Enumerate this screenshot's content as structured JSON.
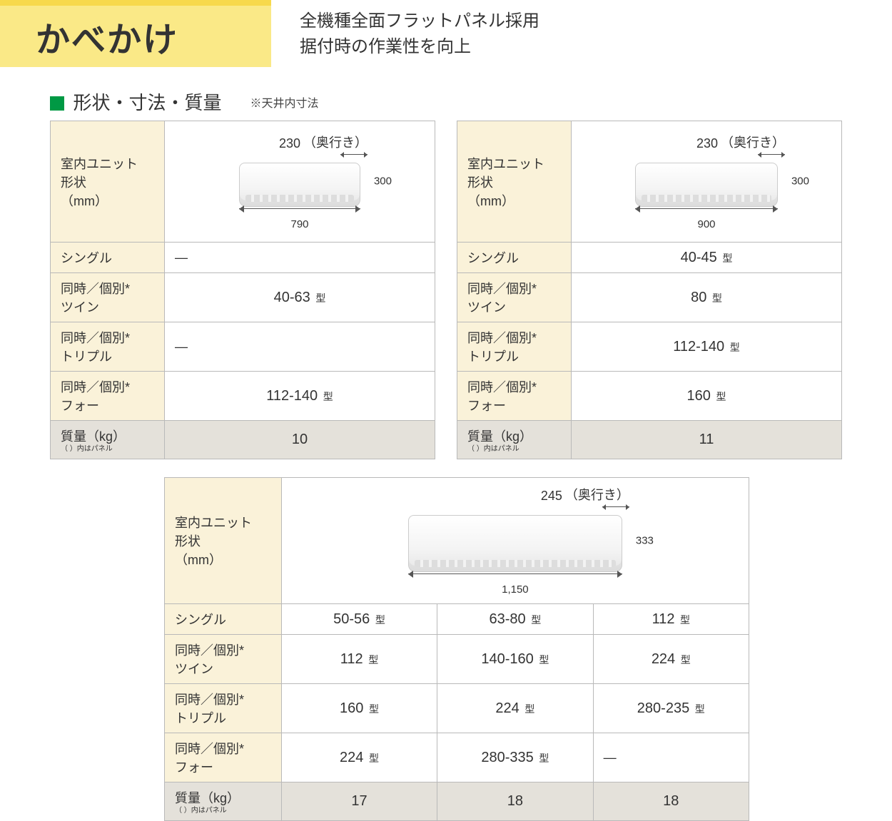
{
  "header": {
    "title": "かべかけ",
    "subtitle_line1": "全機種全面フラットパネル採用",
    "subtitle_line2": "据付時の作業性を向上"
  },
  "section": {
    "title": "形状・寸法・質量",
    "note": "※天井内寸法"
  },
  "labels": {
    "shape_label_1": "室内ユニット",
    "shape_label_2": "形状",
    "shape_label_3": "（mm）",
    "single": "シングル",
    "twin_1": "同時／個別*",
    "twin_2": "ツイン",
    "triple_1": "同時／個別*",
    "triple_2": "トリプル",
    "four_1": "同時／個別*",
    "four_2": "フォー",
    "mass": "質量（kg）",
    "mass_sub": "（ ）内はパネル",
    "depth_label": "（奥行き）",
    "type_unit": "型"
  },
  "table1": {
    "dims": {
      "depth": "230",
      "height": "300",
      "width": "790"
    },
    "single": "―",
    "twin": "40-63",
    "triple": "―",
    "four": "112-140",
    "mass": "10"
  },
  "table2": {
    "dims": {
      "depth": "230",
      "height": "300",
      "width": "900"
    },
    "single": "40-45",
    "twin": "80",
    "triple": "112-140",
    "four": "160",
    "mass": "11"
  },
  "table3": {
    "dims": {
      "depth": "245",
      "height": "333",
      "width": "1,150"
    },
    "cols": {
      "single": [
        "50-56",
        "63-80",
        "112"
      ],
      "twin": [
        "112",
        "140-160",
        "224"
      ],
      "triple": [
        "160",
        "224",
        "280-235"
      ],
      "four": [
        "224",
        "280-335",
        "―"
      ],
      "mass": [
        "17",
        "18",
        "18"
      ]
    }
  },
  "colors": {
    "yellow_bar": "#f7d94c",
    "title_bg": "#fae987",
    "label_bg": "#faf2d9",
    "grey_bg": "#e4e1da",
    "green": "#009944",
    "border": "#b9b9b9"
  }
}
